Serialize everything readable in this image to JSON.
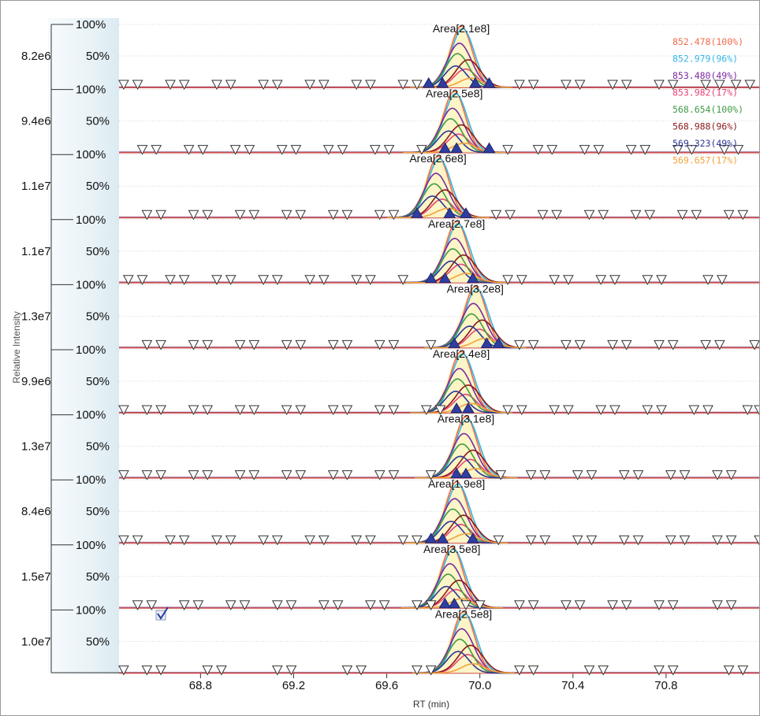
{
  "chart_data": {
    "type": "line",
    "title": "",
    "xlabel": "RT (min)",
    "ylabel": "Relative Intensity",
    "xlim": [
      68.45,
      71.2
    ],
    "x_ticks": [
      "68.8",
      "69.2",
      "69.6",
      "70.0",
      "70.4",
      "70.8"
    ],
    "grid": true,
    "legend_position": "top-right",
    "legend": [
      {
        "label": "852.478(100%)",
        "color": "#f26b4a"
      },
      {
        "label": "852.979(96%)",
        "color": "#35b5e6"
      },
      {
        "label": "853.480(49%)",
        "color": "#7a2aa0"
      },
      {
        "label": "853.982(17%)",
        "color": "#e8447a"
      },
      {
        "label": "568.654(100%)",
        "color": "#3f9a45"
      },
      {
        "label": "568.988(96%)",
        "color": "#8b1a1a"
      },
      {
        "label": "569.323(49%)",
        "color": "#2e3596"
      },
      {
        "label": "569.657(17%)",
        "color": "#f5a23a"
      }
    ],
    "panels": [
      {
        "scale": "8.2e6",
        "area": "Area[2.1e8]",
        "apex_rt": 69.92,
        "boundary_markers_rt": [
          69.78,
          69.84,
          69.98,
          70.04
        ],
        "marker_rt": [
          68.47,
          68.53,
          68.67,
          68.73,
          68.87,
          68.93,
          69.07,
          69.13,
          69.27,
          69.33,
          69.47,
          69.53,
          69.67,
          69.73,
          70.17,
          70.23,
          70.37,
          70.43,
          70.57,
          70.63,
          70.77,
          70.83,
          70.97,
          71.03,
          71.1,
          71.16
        ]
      },
      {
        "scale": "9.4e6",
        "area": "Area[2.5e8]",
        "apex_rt": 69.89,
        "boundary_markers_rt": [
          69.85,
          69.9,
          70.04
        ],
        "marker_rt": [
          68.55,
          68.61,
          68.75,
          68.81,
          68.95,
          69.01,
          69.15,
          69.21,
          69.35,
          69.41,
          69.55,
          69.61,
          69.75,
          70.12,
          70.25,
          70.31,
          70.45,
          70.51,
          70.65,
          70.71,
          70.85,
          70.91,
          71.05,
          71.11
        ]
      },
      {
        "scale": "1.1e7",
        "area": "Area[2.6e8]",
        "apex_rt": 69.82,
        "boundary_markers_rt": [
          69.73,
          69.87,
          69.94
        ],
        "marker_rt": [
          68.57,
          68.63,
          68.77,
          68.83,
          68.97,
          69.03,
          69.17,
          69.23,
          69.37,
          69.43,
          69.57,
          69.63,
          70.07,
          70.13,
          70.27,
          70.33,
          70.47,
          70.53,
          70.67,
          70.73,
          70.87,
          70.93,
          71.07,
          71.13
        ]
      },
      {
        "scale": "1.1e7",
        "area": "Area[2.7e8]",
        "apex_rt": 69.9,
        "boundary_markers_rt": [
          69.79,
          69.85,
          69.97
        ],
        "marker_rt": [
          68.49,
          68.55,
          68.67,
          68.73,
          68.87,
          68.93,
          69.07,
          69.13,
          69.27,
          69.33,
          69.47,
          69.53,
          69.67,
          70.12,
          70.18,
          70.32,
          70.38,
          70.52,
          70.58,
          70.72,
          70.78,
          70.98,
          71.04
        ]
      },
      {
        "scale": "1.3e7",
        "area": "Area[3.2e8]",
        "apex_rt": 69.98,
        "boundary_markers_rt": [
          69.89,
          70.03,
          70.08
        ],
        "marker_rt": [
          68.57,
          68.63,
          68.77,
          68.83,
          68.97,
          69.03,
          69.17,
          69.23,
          69.37,
          69.43,
          69.57,
          69.63,
          69.79,
          70.17,
          70.23,
          70.37,
          70.43,
          70.57,
          70.63,
          70.77,
          70.83,
          70.97,
          71.03,
          71.18
        ]
      },
      {
        "scale": "9.9e6",
        "area": "Area[2.4e8]",
        "apex_rt": 69.92,
        "boundary_markers_rt": [
          69.9,
          69.95
        ],
        "marker_rt": [
          68.47,
          68.57,
          68.63,
          68.77,
          68.83,
          68.97,
          69.03,
          69.17,
          69.23,
          69.37,
          69.43,
          69.57,
          69.63,
          69.77,
          69.83,
          70.12,
          70.18,
          70.32,
          70.38,
          70.52,
          70.58,
          70.72,
          70.78,
          70.92,
          70.98,
          71.15,
          71.2
        ]
      },
      {
        "scale": "1.3e7",
        "area": "Area[3.1e8]",
        "apex_rt": 69.94,
        "boundary_markers_rt": [
          69.9,
          69.94
        ],
        "marker_rt": [
          68.47,
          68.57,
          68.63,
          68.77,
          68.83,
          68.97,
          69.03,
          69.17,
          69.23,
          69.37,
          69.43,
          69.57,
          69.63,
          69.79,
          70.09,
          70.22,
          70.28,
          70.42,
          70.48,
          70.62,
          70.68,
          70.82,
          70.88,
          71.02,
          71.08
        ]
      },
      {
        "scale": "8.4e6",
        "area": "Area[1.9e8]",
        "apex_rt": 69.9,
        "boundary_markers_rt": [
          69.79,
          69.84,
          69.97
        ],
        "marker_rt": [
          68.47,
          68.53,
          68.67,
          68.73,
          68.87,
          68.93,
          69.07,
          69.13,
          69.27,
          69.33,
          69.47,
          69.53,
          69.67,
          69.73,
          70.08,
          70.22,
          70.28,
          70.42,
          70.48,
          70.62,
          70.68,
          70.82,
          70.88,
          71.02,
          71.08,
          71.2
        ]
      },
      {
        "scale": "1.5e7",
        "area": "Area[3.5e8]",
        "apex_rt": 69.88,
        "boundary_markers_rt": [
          69.85,
          69.89
        ],
        "marker_rt": [
          68.53,
          68.59,
          68.73,
          68.79,
          68.93,
          68.99,
          69.13,
          69.19,
          69.33,
          69.39,
          69.53,
          69.59,
          69.73,
          69.79,
          69.94,
          70.0,
          70.17,
          70.23,
          70.37,
          70.43,
          70.57,
          70.63,
          70.77,
          70.83,
          71.02,
          71.08
        ]
      },
      {
        "scale": "1.0e7",
        "area": "Area[2.5e8]",
        "apex_rt": 69.93,
        "boundary_markers_rt": [],
        "marker_rt": [
          68.47,
          68.57,
          68.63,
          68.83,
          68.89,
          69.13,
          69.19,
          69.43,
          69.49,
          69.73,
          69.79,
          70.17,
          70.23,
          70.47,
          70.53,
          70.77,
          70.83,
          71.07,
          71.13
        ]
      }
    ]
  }
}
